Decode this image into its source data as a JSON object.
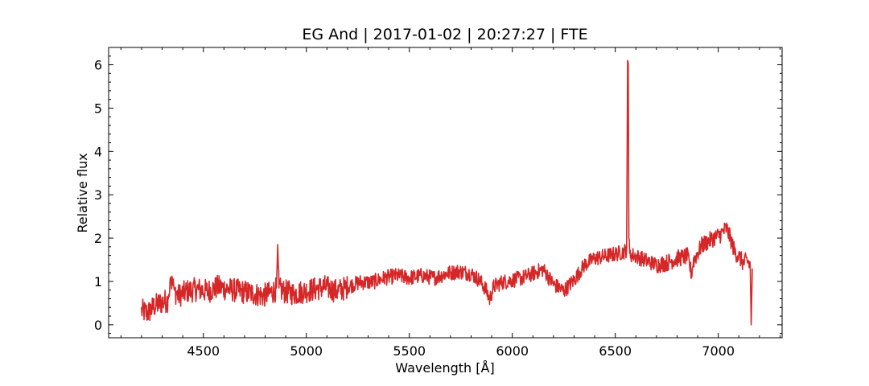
{
  "chart_data": {
    "type": "line",
    "title": "EG And | 2017-01-02 | 20:27:27 | FTE",
    "xlabel": "Wavelength [Å]",
    "ylabel": "Relative flux",
    "xlim": [
      4040,
      7310
    ],
    "ylim": [
      -0.3,
      6.4
    ],
    "xticks": [
      4500,
      5000,
      5500,
      6000,
      6500,
      7000
    ],
    "yticks": [
      0,
      1,
      2,
      3,
      4,
      5,
      6
    ],
    "grid": false,
    "line_color": "#d62728",
    "series": [
      {
        "x": [
          4200,
          4230,
          4260,
          4300,
          4330,
          4340,
          4360,
          4380,
          4420,
          4470,
          4520,
          4570,
          4620,
          4680,
          4740,
          4790,
          4820,
          4840,
          4855,
          4861,
          4867,
          4890,
          4940,
          4990,
          5040,
          5090,
          5150,
          5200,
          5260,
          5320,
          5380,
          5440,
          5500,
          5560,
          5620,
          5680,
          5740,
          5800,
          5840,
          5870,
          5890,
          5910,
          5950,
          6000,
          6050,
          6100,
          6150,
          6200,
          6250,
          6300,
          6350,
          6400,
          6450,
          6500,
          6540,
          6555,
          6560,
          6563,
          6566,
          6570,
          6600,
          6650,
          6700,
          6750,
          6800,
          6850,
          6870,
          6880,
          6920,
          6970,
          7010,
          7040,
          7060,
          7080,
          7100,
          7120,
          7140,
          7155,
          7160,
          7165
        ],
        "y": [
          0.35,
          0.3,
          0.45,
          0.55,
          0.6,
          1.1,
          0.8,
          0.7,
          0.8,
          0.85,
          0.8,
          0.9,
          0.85,
          0.8,
          0.75,
          0.7,
          0.75,
          0.8,
          0.85,
          1.85,
          0.85,
          0.8,
          0.75,
          0.8,
          0.85,
          0.9,
          0.8,
          0.9,
          1.0,
          1.0,
          1.1,
          1.15,
          1.1,
          1.15,
          1.1,
          1.2,
          1.25,
          1.2,
          1.05,
          0.85,
          0.6,
          0.9,
          1.0,
          1.05,
          1.1,
          1.2,
          1.3,
          0.95,
          0.8,
          1.05,
          1.4,
          1.55,
          1.6,
          1.65,
          1.7,
          1.75,
          6.1,
          6.05,
          2.0,
          1.65,
          1.6,
          1.5,
          1.4,
          1.45,
          1.55,
          1.6,
          1.2,
          1.5,
          1.85,
          2.0,
          2.1,
          2.25,
          2.0,
          1.7,
          1.6,
          1.45,
          1.5,
          1.4,
          0.0,
          1.3
        ]
      }
    ]
  }
}
